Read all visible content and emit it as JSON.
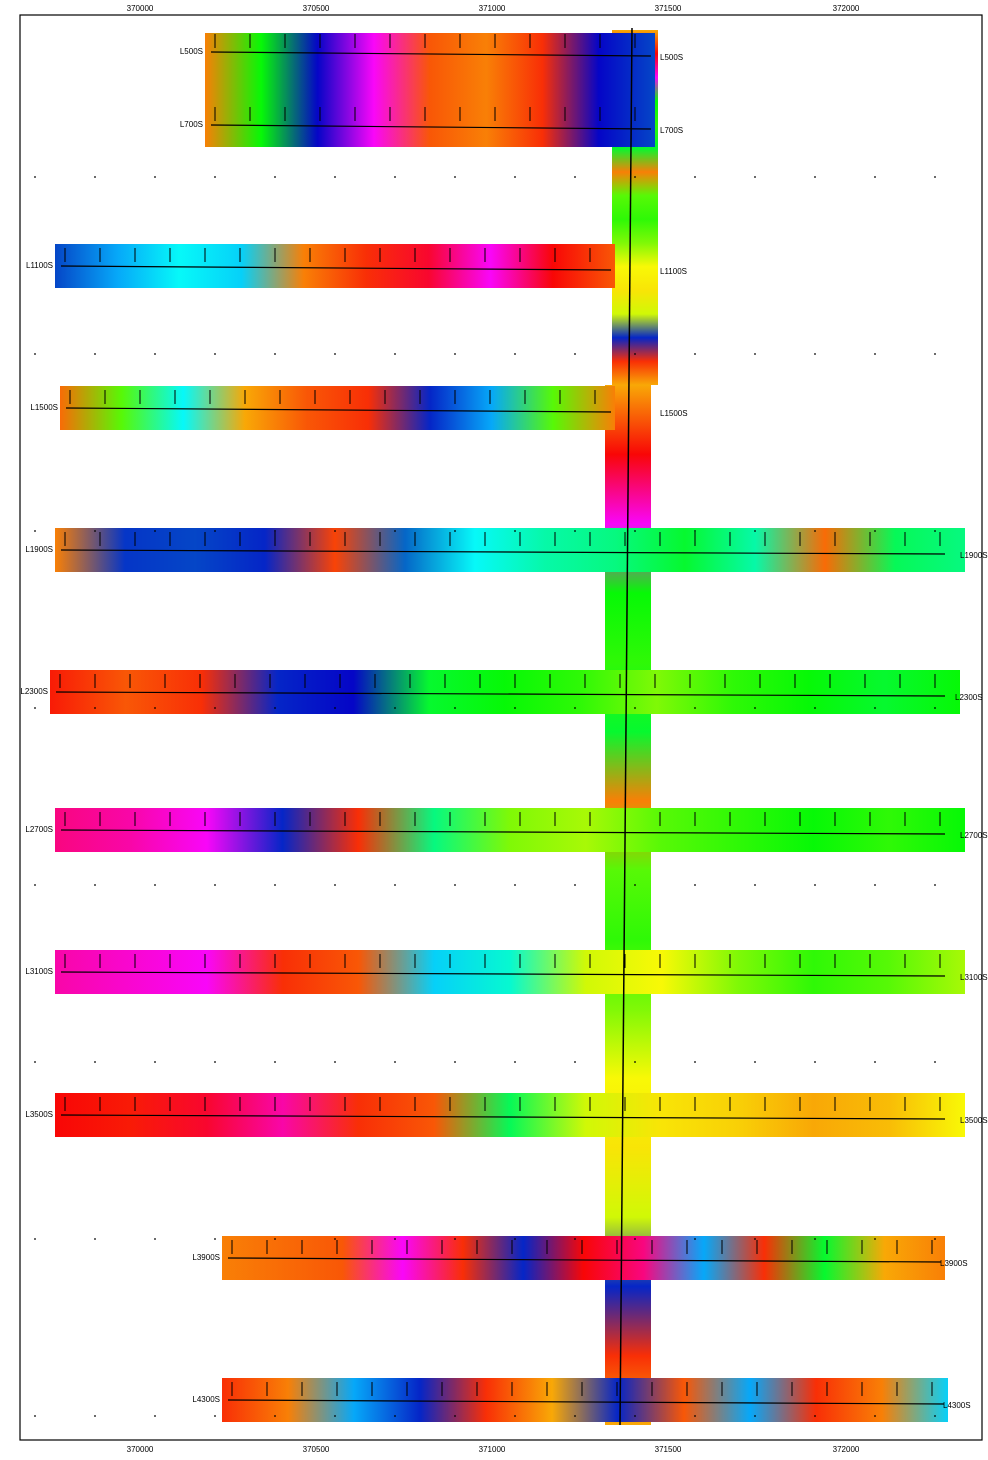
{
  "map": {
    "x_ticks": [
      "370000",
      "370500",
      "371000",
      "371500",
      "372000"
    ],
    "lines": [
      {
        "left_label": "L500S",
        "right_label": "L500S"
      },
      {
        "left_label": "L700S",
        "right_label": "L700S"
      },
      {
        "left_label": "L1100S",
        "right_label": "L1100S"
      },
      {
        "left_label": "L1500S",
        "right_label": "L1500S"
      },
      {
        "left_label": "L1900S",
        "right_label": "L1900S"
      },
      {
        "left_label": "L2300S",
        "right_label": "L2300S"
      },
      {
        "left_label": "L2700S",
        "right_label": "L2700S"
      },
      {
        "left_label": "L3100S",
        "right_label": "L3100S"
      },
      {
        "left_label": "L3500S",
        "right_label": "L3500S"
      },
      {
        "left_label": "L3900S",
        "right_label": "L3900S"
      },
      {
        "left_label": "L4300S",
        "right_label": "L4300S"
      }
    ]
  }
}
